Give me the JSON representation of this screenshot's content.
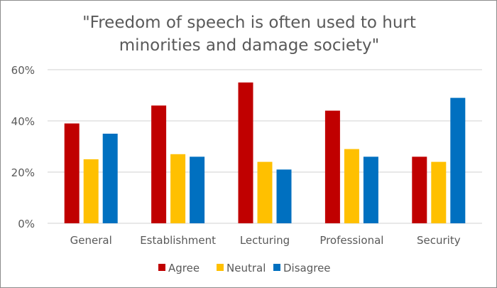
{
  "chart_data": {
    "type": "bar",
    "title": [
      "\"Freedom of speech is often used to hurt",
      "minorities and damage society\""
    ],
    "categories": [
      "General",
      "Establishment",
      "Lecturing",
      "Professional",
      "Security"
    ],
    "series": [
      {
        "name": "Agree",
        "color": "#C00000",
        "values": [
          39,
          46,
          55,
          44,
          26
        ]
      },
      {
        "name": "Neutral",
        "color": "#FFC000",
        "values": [
          25,
          27,
          24,
          29,
          24
        ]
      },
      {
        "name": "Disagree",
        "color": "#0070C0",
        "values": [
          35,
          26,
          21,
          26,
          49
        ]
      }
    ],
    "yticks": [
      "0%",
      "20%",
      "40%",
      "60%"
    ],
    "ylim": [
      0,
      60
    ],
    "grid": true,
    "legend": "bottom"
  }
}
